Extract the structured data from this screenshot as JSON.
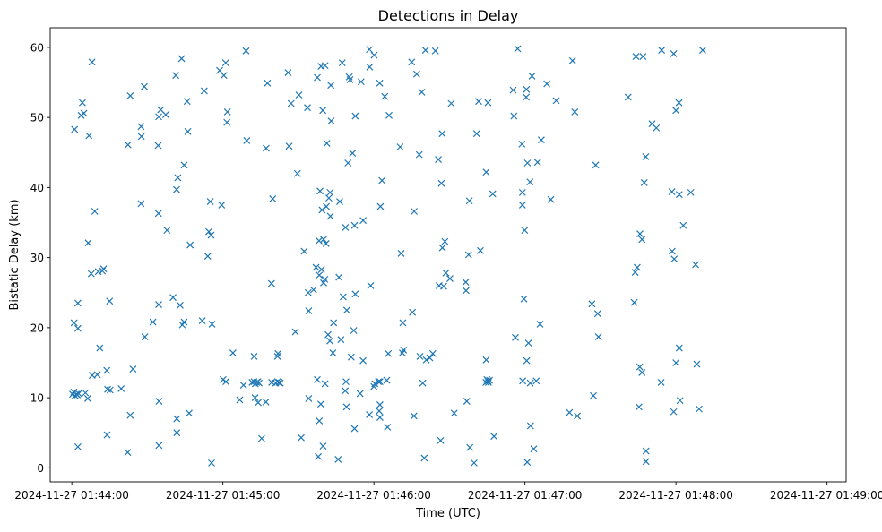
{
  "chart_data": {
    "type": "scatter",
    "title": "Detections in Delay",
    "xlabel": "Time (UTC)",
    "ylabel": "Bistatic Delay (km)",
    "marker": "x",
    "color": "#1f77b4",
    "grid": false,
    "legend": "none",
    "x_unit": "seconds after 2024-11-27 01:44:00",
    "xlim": [
      -8.6,
      307.6
    ],
    "ylim": [
      -2.0,
      62.8
    ],
    "x_ticks": [
      {
        "value": 0,
        "label": "2024-11-27 01:44:00"
      },
      {
        "value": 60,
        "label": "2024-11-27 01:45:00"
      },
      {
        "value": 120,
        "label": "2024-11-27 01:46:00"
      },
      {
        "value": 180,
        "label": "2024-11-27 01:47:00"
      },
      {
        "value": 240,
        "label": "2024-11-27 01:48:00"
      },
      {
        "value": 300,
        "label": "2024-11-27 01:49:00"
      }
    ],
    "y_ticks": [
      {
        "value": 0,
        "label": "0"
      },
      {
        "value": 10,
        "label": "10"
      },
      {
        "value": 20,
        "label": "20"
      },
      {
        "value": 30,
        "label": "30"
      },
      {
        "value": 40,
        "label": "40"
      },
      {
        "value": 50,
        "label": "50"
      },
      {
        "value": 60,
        "label": "60"
      }
    ],
    "points": [
      [
        0.3,
        10.5
      ],
      [
        0.8,
        10.8
      ],
      [
        1.3,
        10.3
      ],
      [
        1.8,
        10.5
      ],
      [
        2.2,
        10.4
      ],
      [
        2.7,
        10.6
      ],
      [
        1.1,
        48.3
      ],
      [
        0.9,
        20.7
      ],
      [
        2.4,
        3.0
      ],
      [
        2.4,
        23.5
      ],
      [
        2.4,
        19.9
      ],
      [
        3.7,
        50.3
      ],
      [
        4.2,
        52.1
      ],
      [
        4.8,
        50.6
      ],
      [
        5.4,
        10.7
      ],
      [
        6.3,
        9.9
      ],
      [
        6.8,
        47.4
      ],
      [
        6.5,
        32.1
      ],
      [
        7.7,
        27.7
      ],
      [
        8.0,
        57.9
      ],
      [
        8.1,
        13.2
      ],
      [
        9.1,
        36.6
      ],
      [
        10.1,
        13.3
      ],
      [
        10.5,
        28.0
      ],
      [
        11.1,
        17.1
      ],
      [
        12.1,
        28.1
      ],
      [
        12.6,
        28.4
      ],
      [
        13.9,
        13.9
      ],
      [
        14.2,
        11.2
      ],
      [
        14.0,
        4.7
      ],
      [
        15.0,
        23.8
      ],
      [
        15.2,
        11.1
      ],
      [
        19.6,
        11.3
      ],
      [
        22.2,
        2.2
      ],
      [
        22.3,
        46.1
      ],
      [
        23.2,
        7.5
      ],
      [
        23.2,
        53.1
      ],
      [
        24.3,
        14.1
      ],
      [
        27.5,
        37.7
      ],
      [
        27.6,
        47.3
      ],
      [
        27.5,
        48.7
      ],
      [
        28.8,
        54.4
      ],
      [
        29.0,
        18.7
      ],
      [
        32.2,
        20.8
      ],
      [
        34.6,
        3.2
      ],
      [
        34.6,
        9.5
      ],
      [
        34.3,
        46.0
      ],
      [
        34.5,
        50.1
      ],
      [
        35.3,
        51.1
      ],
      [
        34.4,
        36.3
      ],
      [
        34.5,
        23.3
      ],
      [
        37.3,
        50.4
      ],
      [
        37.8,
        33.9
      ],
      [
        40.2,
        24.3
      ],
      [
        41.3,
        56.0
      ],
      [
        41.6,
        39.7
      ],
      [
        42.1,
        41.4
      ],
      [
        41.7,
        7.0
      ],
      [
        41.7,
        5.0
      ],
      [
        43.0,
        23.2
      ],
      [
        43.6,
        58.4
      ],
      [
        43.9,
        20.4
      ],
      [
        44.6,
        43.2
      ],
      [
        44.6,
        20.8
      ],
      [
        45.8,
        52.3
      ],
      [
        46.1,
        48.0
      ],
      [
        46.6,
        7.8
      ],
      [
        47.0,
        31.8
      ],
      [
        51.8,
        21.0
      ],
      [
        52.6,
        53.8
      ],
      [
        54.4,
        33.7
      ],
      [
        54.0,
        30.2
      ],
      [
        55.3,
        33.2
      ],
      [
        55.0,
        38.0
      ],
      [
        55.7,
        20.5
      ],
      [
        55.5,
        0.7
      ],
      [
        58.7,
        56.7
      ],
      [
        59.5,
        37.5
      ],
      [
        60.1,
        12.6
      ],
      [
        60.4,
        56.0
      ],
      [
        61.2,
        12.3
      ],
      [
        61.1,
        57.8
      ],
      [
        61.6,
        49.3
      ],
      [
        61.8,
        50.8
      ],
      [
        64.0,
        16.4
      ],
      [
        66.7,
        9.7
      ],
      [
        68.2,
        11.8
      ],
      [
        69.2,
        59.5
      ],
      [
        69.5,
        46.7
      ],
      [
        71.6,
        12.2
      ],
      [
        72.4,
        12.3
      ],
      [
        72.9,
        12.0
      ],
      [
        73.4,
        12.2
      ],
      [
        73.9,
        12.3
      ],
      [
        74.4,
        12.1
      ],
      [
        72.4,
        15.9
      ],
      [
        72.8,
        10.0
      ],
      [
        74.0,
        9.3
      ],
      [
        75.4,
        4.2
      ],
      [
        77.2,
        45.6
      ],
      [
        77.1,
        9.4
      ],
      [
        77.7,
        54.9
      ],
      [
        79.4,
        12.2
      ],
      [
        79.3,
        26.3
      ],
      [
        79.8,
        38.4
      ],
      [
        81.0,
        12.1
      ],
      [
        81.7,
        12.3
      ],
      [
        82.3,
        12.2
      ],
      [
        82.8,
        12.1
      ],
      [
        81.9,
        16.3
      ],
      [
        81.7,
        15.9
      ],
      [
        85.9,
        56.4
      ],
      [
        86.3,
        45.9
      ],
      [
        87.1,
        52.0
      ],
      [
        88.8,
        19.4
      ],
      [
        89.6,
        42.0
      ],
      [
        90.2,
        53.2
      ],
      [
        91.1,
        4.3
      ],
      [
        92.3,
        30.9
      ],
      [
        93.6,
        51.4
      ],
      [
        94.1,
        22.4
      ],
      [
        93.9,
        25.0
      ],
      [
        94.1,
        9.9
      ],
      [
        96.0,
        25.4
      ],
      [
        97.0,
        28.6
      ],
      [
        97.5,
        55.7
      ],
      [
        97.5,
        12.6
      ],
      [
        97.9,
        1.6
      ],
      [
        98.3,
        6.7
      ],
      [
        98.2,
        32.4
      ],
      [
        98.3,
        27.5
      ],
      [
        98.6,
        39.5
      ],
      [
        99.0,
        57.3
      ],
      [
        98.9,
        9.1
      ],
      [
        99.2,
        28.3
      ],
      [
        99.4,
        36.8
      ],
      [
        99.7,
        51.0
      ],
      [
        99.8,
        3.1
      ],
      [
        100.0,
        32.6
      ],
      [
        100.0,
        26.4
      ],
      [
        100.6,
        12.0
      ],
      [
        100.5,
        26.9
      ],
      [
        100.6,
        57.4
      ],
      [
        101.0,
        32.0
      ],
      [
        101.3,
        46.3
      ],
      [
        101.1,
        37.3
      ],
      [
        101.8,
        19.0
      ],
      [
        102.1,
        38.5
      ],
      [
        102.6,
        39.3
      ],
      [
        102.7,
        35.9
      ],
      [
        102.5,
        18.1
      ],
      [
        102.9,
        54.6
      ],
      [
        103.0,
        49.5
      ],
      [
        103.7,
        16.4
      ],
      [
        104.0,
        20.7
      ],
      [
        105.8,
        1.2
      ],
      [
        106.1,
        27.2
      ],
      [
        106.4,
        38.0
      ],
      [
        106.9,
        18.3
      ],
      [
        107.4,
        57.8
      ],
      [
        107.8,
        24.4
      ],
      [
        108.6,
        11.0
      ],
      [
        108.7,
        34.3
      ],
      [
        108.9,
        12.3
      ],
      [
        109.1,
        8.7
      ],
      [
        109.2,
        22.5
      ],
      [
        109.7,
        43.5
      ],
      [
        110.2,
        55.8
      ],
      [
        110.5,
        55.4
      ],
      [
        111.0,
        15.8
      ],
      [
        111.5,
        44.9
      ],
      [
        112.0,
        19.6
      ],
      [
        112.3,
        5.6
      ],
      [
        112.6,
        24.8
      ],
      [
        112.3,
        34.6
      ],
      [
        112.6,
        50.2
      ],
      [
        114.5,
        10.6
      ],
      [
        114.9,
        55.1
      ],
      [
        115.7,
        35.3
      ],
      [
        115.7,
        15.3
      ],
      [
        118.2,
        7.6
      ],
      [
        118.3,
        57.2
      ],
      [
        118.2,
        59.7
      ],
      [
        118.7,
        26.0
      ],
      [
        120.1,
        58.9
      ],
      [
        120.0,
        11.6
      ],
      [
        120.4,
        12.0
      ],
      [
        121.8,
        12.3
      ],
      [
        122.4,
        12.3
      ],
      [
        122.3,
        54.9
      ],
      [
        122.6,
        37.3
      ],
      [
        123.2,
        41.0
      ],
      [
        122.4,
        7.2
      ],
      [
        122.1,
        8.1
      ],
      [
        122.4,
        9.0
      ],
      [
        124.3,
        53.0
      ],
      [
        125.1,
        12.5
      ],
      [
        125.4,
        5.8
      ],
      [
        125.7,
        16.3
      ],
      [
        126.0,
        50.3
      ],
      [
        130.4,
        45.8
      ],
      [
        130.8,
        30.6
      ],
      [
        131.3,
        16.4
      ],
      [
        131.8,
        16.8
      ],
      [
        131.5,
        20.7
      ],
      [
        135.0,
        57.9
      ],
      [
        135.3,
        22.2
      ],
      [
        135.9,
        7.4
      ],
      [
        136.0,
        36.6
      ],
      [
        137.0,
        56.2
      ],
      [
        138.0,
        44.7
      ],
      [
        138.3,
        15.9
      ],
      [
        139.0,
        53.6
      ],
      [
        139.4,
        12.1
      ],
      [
        140.0,
        1.4
      ],
      [
        140.5,
        59.6
      ],
      [
        140.8,
        15.4
      ],
      [
        142.2,
        15.7
      ],
      [
        143.4,
        16.3
      ],
      [
        144.4,
        59.5
      ],
      [
        145.6,
        44.0
      ],
      [
        145.9,
        26.0
      ],
      [
        146.8,
        40.6
      ],
      [
        146.5,
        3.9
      ],
      [
        147.1,
        47.7
      ],
      [
        147.2,
        31.4
      ],
      [
        147.7,
        25.9
      ],
      [
        148.2,
        32.3
      ],
      [
        148.6,
        27.8
      ],
      [
        150.2,
        27.0
      ],
      [
        150.7,
        52.0
      ],
      [
        151.9,
        7.8
      ],
      [
        156.9,
        9.5
      ],
      [
        156.5,
        26.5
      ],
      [
        156.6,
        25.3
      ],
      [
        157.6,
        30.4
      ],
      [
        157.9,
        38.1
      ],
      [
        158.1,
        2.9
      ],
      [
        159.8,
        0.7
      ],
      [
        160.8,
        47.7
      ],
      [
        161.6,
        52.3
      ],
      [
        162.3,
        31.0
      ],
      [
        164.5,
        12.2
      ],
      [
        164.9,
        12.6
      ],
      [
        165.3,
        12.4
      ],
      [
        165.5,
        12.2
      ],
      [
        165.9,
        12.5
      ],
      [
        164.6,
        15.4
      ],
      [
        164.6,
        42.2
      ],
      [
        165.3,
        52.1
      ],
      [
        167.2,
        39.1
      ],
      [
        167.7,
        4.5
      ],
      [
        175.3,
        53.9
      ],
      [
        175.6,
        50.2
      ],
      [
        176.2,
        18.6
      ],
      [
        177.1,
        59.8
      ],
      [
        178.8,
        46.2
      ],
      [
        179.0,
        39.3
      ],
      [
        179.0,
        37.5
      ],
      [
        179.1,
        12.4
      ],
      [
        179.6,
        24.1
      ],
      [
        179.9,
        33.9
      ],
      [
        180.5,
        52.9
      ],
      [
        180.6,
        54.0
      ],
      [
        180.7,
        15.3
      ],
      [
        180.9,
        0.8
      ],
      [
        181.0,
        43.5
      ],
      [
        181.4,
        17.8
      ],
      [
        182.0,
        40.8
      ],
      [
        182.1,
        12.1
      ],
      [
        182.2,
        6.0
      ],
      [
        182.8,
        55.9
      ],
      [
        183.5,
        2.7
      ],
      [
        184.5,
        12.4
      ],
      [
        185.0,
        43.6
      ],
      [
        186.0,
        20.5
      ],
      [
        186.5,
        46.8
      ],
      [
        188.7,
        54.8
      ],
      [
        190.3,
        38.3
      ],
      [
        192.4,
        52.4
      ],
      [
        197.7,
        7.9
      ],
      [
        198.9,
        58.1
      ],
      [
        199.8,
        50.8
      ],
      [
        200.8,
        7.4
      ],
      [
        206.6,
        23.4
      ],
      [
        207.2,
        10.3
      ],
      [
        208.1,
        43.2
      ],
      [
        208.9,
        22.0
      ],
      [
        209.2,
        18.7
      ],
      [
        221.0,
        52.9
      ],
      [
        223.4,
        23.6
      ],
      [
        223.8,
        27.9
      ],
      [
        224.1,
        58.7
      ],
      [
        224.6,
        28.6
      ],
      [
        225.7,
        33.4
      ],
      [
        225.6,
        14.4
      ],
      [
        225.3,
        8.7
      ],
      [
        226.5,
        32.6
      ],
      [
        226.5,
        13.6
      ],
      [
        226.9,
        58.7
      ],
      [
        227.4,
        40.7
      ],
      [
        228.0,
        44.4
      ],
      [
        228.1,
        2.4
      ],
      [
        228.1,
        0.9
      ],
      [
        230.5,
        49.1
      ],
      [
        232.2,
        48.5
      ],
      [
        234.1,
        12.2
      ],
      [
        234.3,
        59.6
      ],
      [
        238.5,
        30.9
      ],
      [
        238.4,
        39.4
      ],
      [
        239.1,
        59.1
      ],
      [
        239.1,
        8.0
      ],
      [
        239.3,
        29.8
      ],
      [
        240.0,
        51.0
      ],
      [
        240.0,
        15.0
      ],
      [
        241.3,
        39.0
      ],
      [
        241.2,
        52.1
      ],
      [
        241.3,
        17.1
      ],
      [
        241.6,
        9.6
      ],
      [
        242.9,
        34.6
      ],
      [
        245.9,
        39.3
      ],
      [
        247.8,
        29.0
      ],
      [
        248.3,
        14.8
      ],
      [
        249.2,
        8.4
      ],
      [
        250.6,
        59.6
      ]
    ]
  }
}
